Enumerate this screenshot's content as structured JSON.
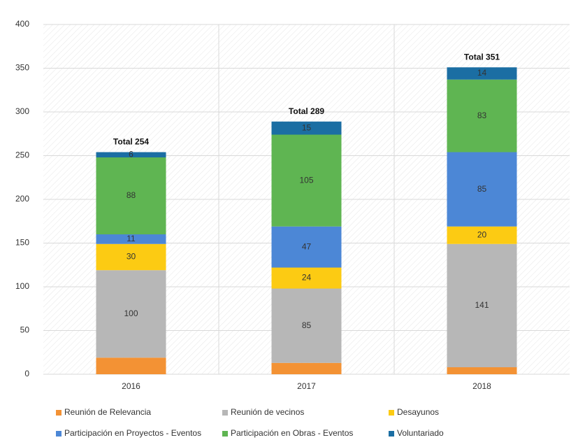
{
  "chart_data": {
    "type": "stacked_bar",
    "categories": [
      "2016",
      "2017",
      "2018"
    ],
    "total_labels": [
      "Total 254",
      "Total 289",
      "Total 351"
    ],
    "series": [
      {
        "name": "Reunión de Relevancia",
        "color": "#f39234",
        "values": [
          19,
          13,
          8
        ],
        "labels": false,
        "label_color": "#ffffff"
      },
      {
        "name": "Reunión de vecinos",
        "color": "#b7b7b7",
        "values": [
          100,
          85,
          141
        ],
        "labels": true,
        "label_color": "#ffffff"
      },
      {
        "name": "Desayunos",
        "color": "#fccb13",
        "values": [
          30,
          24,
          20
        ],
        "labels": true,
        "label_color": "#333333"
      },
      {
        "name": "Participación en Proyectos - Eventos",
        "color": "#4c87d6",
        "values": [
          11,
          47,
          85
        ],
        "labels": true,
        "label_color": "#ffffff"
      },
      {
        "name": "Participación en Obras - Eventos",
        "color": "#5fb552",
        "values": [
          88,
          105,
          83
        ],
        "labels": true,
        "label_color": "#ffffff"
      },
      {
        "name": "Voluntariado",
        "color": "#1b6ea3",
        "values": [
          6,
          15,
          14
        ],
        "labels": true,
        "label_color": "#ffffff"
      }
    ],
    "ylim": [
      0,
      400
    ],
    "yticks": [
      0,
      50,
      100,
      150,
      200,
      250,
      300,
      350,
      400
    ],
    "grid": true
  }
}
